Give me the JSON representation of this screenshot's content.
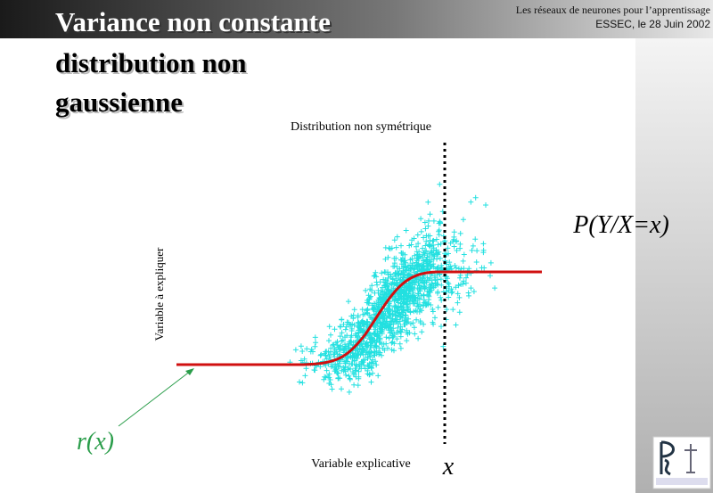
{
  "header": {
    "course": "Les réseaux de neurones pour  l’apprentissage",
    "event": "ESSEC, le 28 Juin 2002"
  },
  "title": [
    "Variance non constante",
    "distribution non",
    "gaussienne"
  ],
  "figure": {
    "top_label": "Distribution non symétrique",
    "x_label": "Variable explicative",
    "y_label": "Variable à expliquer",
    "conditional": "P(Y/X=x)",
    "x_mark": "x",
    "regression": "r(x)"
  }
}
